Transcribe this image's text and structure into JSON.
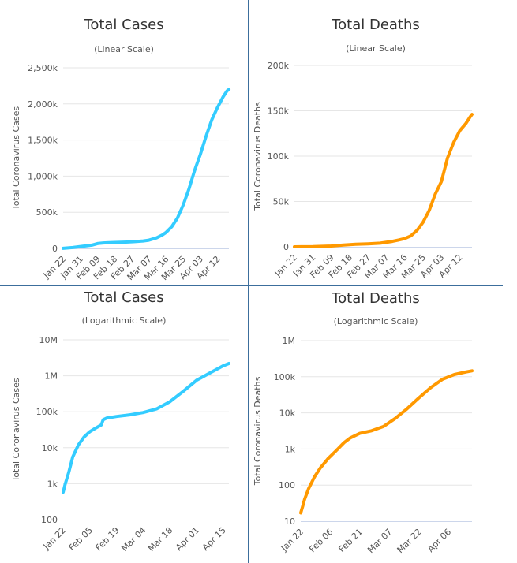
{
  "colors": {
    "cases": "#33ccff",
    "deaths": "#ff9900",
    "divider": "#3c6e9c"
  },
  "chart_data": [
    {
      "type": "line",
      "title": "Total Cases",
      "subtitle": "(Linear Scale)",
      "ylabel": "Total Coronavirus Cases",
      "yscale": "linear",
      "ylim": [
        0,
        2500000
      ],
      "yticks": [
        0,
        500000,
        1000000,
        1500000,
        2000000,
        2500000
      ],
      "ytick_labels": [
        "0",
        "500k",
        "1,000k",
        "1,500k",
        "2,000k",
        "2,500k"
      ],
      "xlim": [
        0,
        87
      ],
      "xtick_positions": [
        0,
        9,
        18,
        27,
        36,
        45,
        54,
        63,
        72,
        81
      ],
      "xtick_labels": [
        "Jan 22",
        "Jan 31",
        "Feb 09",
        "Feb 18",
        "Feb 27",
        "Mar 07",
        "Mar 16",
        "Mar 25",
        "Apr 03",
        "Apr 12"
      ],
      "color_key": "cases",
      "x": [
        0,
        5,
        10,
        15,
        18,
        21,
        23,
        27,
        32,
        37,
        42,
        45,
        49,
        52,
        54,
        57,
        60,
        63,
        66,
        69,
        72,
        75,
        78,
        81,
        84,
        86,
        87
      ],
      "y": [
        580,
        12000,
        28000,
        45000,
        67000,
        75000,
        78000,
        82000,
        86000,
        93000,
        103000,
        113000,
        145000,
        185000,
        220000,
        300000,
        420000,
        600000,
        820000,
        1080000,
        1300000,
        1550000,
        1780000,
        1950000,
        2100000,
        2180000,
        2200000
      ],
      "series": [
        {
          "name": "",
          "values_key": "y"
        }
      ]
    },
    {
      "type": "line",
      "title": "Total Deaths",
      "subtitle": "(Linear Scale)",
      "ylabel": "Total Coronavirus Deaths",
      "yscale": "linear",
      "ylim": [
        0,
        200000
      ],
      "yticks": [
        0,
        50000,
        100000,
        150000,
        200000
      ],
      "ytick_labels": [
        "0",
        "50k",
        "100k",
        "150k",
        "200k"
      ],
      "xlim": [
        0,
        87
      ],
      "xtick_positions": [
        0,
        9,
        18,
        27,
        36,
        45,
        54,
        63,
        72,
        81
      ],
      "xtick_labels": [
        "Jan 22",
        "Jan 31",
        "Feb 09",
        "Feb 18",
        "Feb 27",
        "Mar 07",
        "Mar 16",
        "Mar 25",
        "Apr 03",
        "Apr 12"
      ],
      "color_key": "deaths",
      "x": [
        0,
        9,
        18,
        24,
        30,
        36,
        42,
        48,
        51,
        54,
        57,
        60,
        63,
        66,
        69,
        72,
        75,
        78,
        81,
        84,
        86,
        87
      ],
      "y": [
        17,
        213,
        910,
        2000,
        2800,
        3300,
        4000,
        6000,
        7500,
        9000,
        12000,
        18000,
        27000,
        40000,
        58000,
        72000,
        98000,
        115000,
        128000,
        136000,
        143000,
        146000
      ],
      "series": [
        {
          "name": "",
          "values_key": "y"
        }
      ]
    },
    {
      "type": "line",
      "title": "Total Cases",
      "subtitle": "(Logarithmic Scale)",
      "ylabel": "Total Coronavirus Cases",
      "yscale": "log",
      "ylim": [
        100,
        10000000
      ],
      "yticks": [
        100,
        1000,
        10000,
        100000,
        1000000,
        10000000
      ],
      "ytick_labels": [
        "100",
        "1k",
        "10k",
        "100k",
        "1M",
        "10M"
      ],
      "xlim": [
        0,
        87
      ],
      "xtick_positions": [
        0,
        14,
        28,
        42,
        56,
        70,
        84
      ],
      "xtick_labels": [
        "Jan 22",
        "Feb 05",
        "Feb 19",
        "Mar 04",
        "Mar 18",
        "Apr 01",
        "Apr 15"
      ],
      "color_key": "cases",
      "x": [
        0,
        1,
        3,
        5,
        8,
        11,
        14,
        17,
        20,
        21,
        23,
        28,
        35,
        42,
        49,
        56,
        63,
        70,
        77,
        84,
        87
      ],
      "y": [
        580,
        940,
        2100,
        5500,
        12000,
        20000,
        28000,
        35000,
        43000,
        60000,
        67000,
        74000,
        82000,
        95000,
        120000,
        190000,
        370000,
        750000,
        1200000,
        1900000,
        2200000
      ],
      "series": [
        {
          "name": "",
          "values_key": "y"
        }
      ]
    },
    {
      "type": "line",
      "title": "Total Deaths",
      "subtitle": "(Logarithmic Scale)",
      "ylabel": "Total Coronavirus Deaths",
      "yscale": "log",
      "ylim": [
        10,
        1000000
      ],
      "yticks": [
        10,
        100,
        1000,
        10000,
        100000,
        1000000
      ],
      "ytick_labels": [
        "10",
        "100",
        "1k",
        "10k",
        "100k",
        "1M"
      ],
      "xlim": [
        0,
        87
      ],
      "xtick_positions": [
        0,
        15,
        30,
        45,
        60,
        75
      ],
      "xtick_labels": [
        "Jan 22",
        "Feb 06",
        "Feb 21",
        "Mar 07",
        "Mar 22",
        "Apr 06"
      ],
      "color_key": "deaths",
      "x": [
        0,
        1,
        2,
        4,
        7,
        10,
        14,
        18,
        22,
        25,
        30,
        36,
        42,
        48,
        54,
        60,
        66,
        72,
        78,
        84,
        87
      ],
      "y": [
        17,
        26,
        41,
        80,
        170,
        300,
        550,
        900,
        1500,
        2000,
        2700,
        3200,
        4200,
        7000,
        13000,
        26000,
        50000,
        85000,
        115000,
        136000,
        146000
      ],
      "series": [
        {
          "name": "",
          "values_key": "y"
        }
      ]
    }
  ]
}
